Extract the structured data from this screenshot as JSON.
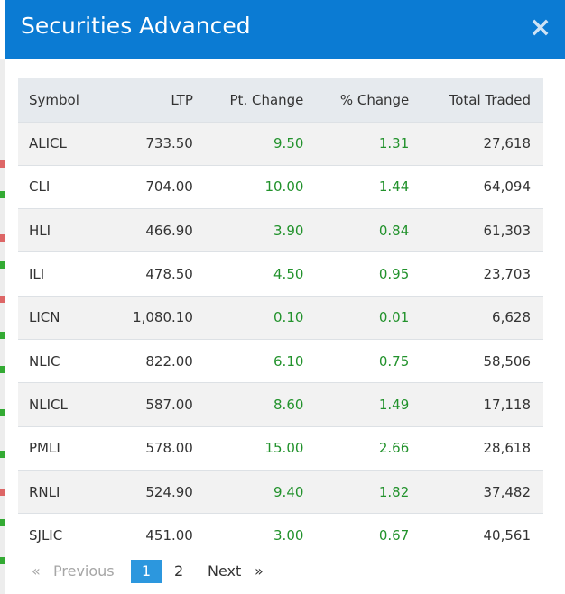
{
  "modal": {
    "title": "Securities Advanced",
    "close_symbol": "×"
  },
  "table": {
    "headers": {
      "symbol": "Symbol",
      "ltp": "LTP",
      "pt_change": "Pt. Change",
      "pct_change": "% Change",
      "total_traded": "Total Traded"
    },
    "rows": [
      {
        "symbol": "ALICL",
        "ltp": "733.50",
        "pt_change": "9.50",
        "pct_change": "1.31",
        "total_traded": "27,618"
      },
      {
        "symbol": "CLI",
        "ltp": "704.00",
        "pt_change": "10.00",
        "pct_change": "1.44",
        "total_traded": "64,094"
      },
      {
        "symbol": "HLI",
        "ltp": "466.90",
        "pt_change": "3.90",
        "pct_change": "0.84",
        "total_traded": "61,303"
      },
      {
        "symbol": "ILI",
        "ltp": "478.50",
        "pt_change": "4.50",
        "pct_change": "0.95",
        "total_traded": "23,703"
      },
      {
        "symbol": "LICN",
        "ltp": "1,080.10",
        "pt_change": "0.10",
        "pct_change": "0.01",
        "total_traded": "6,628"
      },
      {
        "symbol": "NLIC",
        "ltp": "822.00",
        "pt_change": "6.10",
        "pct_change": "0.75",
        "total_traded": "58,506"
      },
      {
        "symbol": "NLICL",
        "ltp": "587.00",
        "pt_change": "8.60",
        "pct_change": "1.49",
        "total_traded": "17,118"
      },
      {
        "symbol": "PMLI",
        "ltp": "578.00",
        "pt_change": "15.00",
        "pct_change": "2.66",
        "total_traded": "28,618"
      },
      {
        "symbol": "RNLI",
        "ltp": "524.90",
        "pt_change": "9.40",
        "pct_change": "1.82",
        "total_traded": "37,482"
      },
      {
        "symbol": "SJLIC",
        "ltp": "451.00",
        "pt_change": "3.00",
        "pct_change": "0.67",
        "total_traded": "40,561"
      }
    ]
  },
  "pagination": {
    "first_symbol": "«",
    "previous_label": "Previous",
    "pages": [
      "1",
      "2"
    ],
    "current_page": "1",
    "next_label": "Next",
    "last_symbol": "»"
  },
  "colors": {
    "header_bg": "#0b7bd3",
    "positive": "#22922c",
    "active_page": "#2c97de",
    "table_header_bg": "#e6eaee",
    "row_stripe": "#f2f2f2"
  }
}
